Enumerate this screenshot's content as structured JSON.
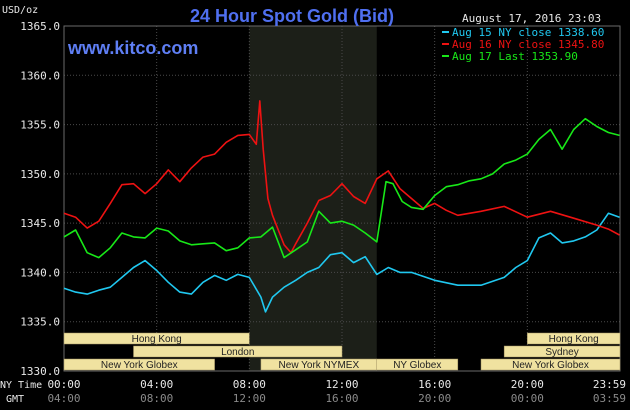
{
  "chart_data": {
    "type": "line",
    "title": "24 Hour Spot Gold (Bid)",
    "brand": "www.kitco.com",
    "ylabel": "USD/oz",
    "timestamp": "August 17, 2016 23:03",
    "ylim": [
      1330,
      1365
    ],
    "yticks": [
      "1365.0",
      "1360.0",
      "1355.0",
      "1350.0",
      "1345.0",
      "1340.0",
      "1335.0",
      "1330.0"
    ],
    "x_row1_label": "NY Time",
    "x_row2_label": "GMT",
    "x_ticks_ny": [
      "00:00",
      "04:00",
      "08:00",
      "12:00",
      "16:00",
      "20:00",
      "23:59"
    ],
    "x_ticks_gmt": [
      "04:00",
      "08:00",
      "12:00",
      "16:00",
      "20:00",
      "00:00",
      "03:59"
    ],
    "colors": {
      "background": "#000000",
      "grid": "#4a4a4a",
      "highlight": "#1c1f18",
      "session": "#f0e2a0",
      "title": "#4f6ff0"
    },
    "sessions": [
      {
        "label": "Hong Kong",
        "start": 0.0,
        "end": 8.0,
        "row": 0
      },
      {
        "label": "London",
        "start": 3.0,
        "end": 12.0,
        "row": 1
      },
      {
        "label": "New York Globex",
        "start": 0.0,
        "end": 6.5,
        "row": 2
      },
      {
        "label": "New York NYMEX",
        "start": 8.5,
        "end": 13.5,
        "row": 2
      },
      {
        "label": "NY Globex",
        "start": 13.5,
        "end": 17.0,
        "row": 2
      },
      {
        "label": "Hong Kong",
        "start": 20.0,
        "end": 24.0,
        "row": 0
      },
      {
        "label": "Sydney",
        "start": 19.0,
        "end": 24.0,
        "row": 1
      },
      {
        "label": "New York Globex",
        "start": 18.0,
        "end": 24.0,
        "row": 2
      }
    ],
    "highlight_hours": [
      8.0,
      13.5
    ],
    "series": [
      {
        "name": "Aug 15 NY close 1338.60",
        "color": "#20c8f0",
        "points": [
          [
            0,
            1338.4
          ],
          [
            0.5,
            1338
          ],
          [
            1,
            1337.8
          ],
          [
            1.5,
            1338.2
          ],
          [
            2,
            1338.5
          ],
          [
            2.5,
            1339.5
          ],
          [
            3,
            1340.5
          ],
          [
            3.5,
            1341.2
          ],
          [
            4,
            1340.2
          ],
          [
            4.5,
            1339
          ],
          [
            5,
            1338
          ],
          [
            5.5,
            1337.8
          ],
          [
            6,
            1339
          ],
          [
            6.5,
            1339.7
          ],
          [
            7,
            1339.2
          ],
          [
            7.5,
            1339.8
          ],
          [
            8,
            1339.5
          ],
          [
            8.5,
            1337.5
          ],
          [
            8.7,
            1336
          ],
          [
            9,
            1337.5
          ],
          [
            9.5,
            1338.5
          ],
          [
            10,
            1339.2
          ],
          [
            10.5,
            1340
          ],
          [
            11,
            1340.5
          ],
          [
            11.5,
            1341.8
          ],
          [
            12,
            1342
          ],
          [
            12.5,
            1341
          ],
          [
            13,
            1341.6
          ],
          [
            13.5,
            1339.8
          ],
          [
            14,
            1340.5
          ],
          [
            14.5,
            1340
          ],
          [
            15,
            1340
          ],
          [
            16,
            1339.2
          ],
          [
            17,
            1338.7
          ],
          [
            18,
            1338.7
          ],
          [
            19,
            1339.5
          ],
          [
            19.5,
            1340.5
          ],
          [
            20,
            1341.2
          ],
          [
            20.5,
            1343.5
          ],
          [
            21,
            1344
          ],
          [
            21.5,
            1343
          ],
          [
            22,
            1343.2
          ],
          [
            22.5,
            1343.6
          ],
          [
            23,
            1344.3
          ],
          [
            23.5,
            1346
          ],
          [
            23.98,
            1345.6
          ]
        ]
      },
      {
        "name": "Aug 16 NY close 1345.80",
        "color": "#ee1212",
        "points": [
          [
            0,
            1346
          ],
          [
            0.5,
            1345.6
          ],
          [
            1,
            1344.5
          ],
          [
            1.5,
            1345.2
          ],
          [
            2,
            1347
          ],
          [
            2.5,
            1348.9
          ],
          [
            3,
            1349
          ],
          [
            3.5,
            1348
          ],
          [
            4,
            1349
          ],
          [
            4.5,
            1350.4
          ],
          [
            5,
            1349.2
          ],
          [
            5.5,
            1350.6
          ],
          [
            6,
            1351.7
          ],
          [
            6.5,
            1352
          ],
          [
            7,
            1353.2
          ],
          [
            7.5,
            1353.9
          ],
          [
            8,
            1354
          ],
          [
            8.3,
            1353
          ],
          [
            8.45,
            1357.4
          ],
          [
            8.6,
            1352.5
          ],
          [
            8.8,
            1347.5
          ],
          [
            9,
            1345.8
          ],
          [
            9.5,
            1342.8
          ],
          [
            9.8,
            1342
          ],
          [
            10,
            1342.9
          ],
          [
            10.5,
            1345
          ],
          [
            11,
            1347.3
          ],
          [
            11.5,
            1347.8
          ],
          [
            12,
            1349
          ],
          [
            12.5,
            1347.7
          ],
          [
            13,
            1347
          ],
          [
            13.5,
            1349.5
          ],
          [
            14,
            1350.3
          ],
          [
            14.5,
            1348.5
          ],
          [
            15,
            1347.5
          ],
          [
            15.5,
            1346.5
          ],
          [
            16,
            1347
          ],
          [
            16.5,
            1346.3
          ],
          [
            17,
            1345.8
          ],
          [
            18,
            1346.2
          ],
          [
            19,
            1346.7
          ],
          [
            20,
            1345.6
          ],
          [
            21,
            1346.2
          ],
          [
            22,
            1345.5
          ],
          [
            23,
            1344.8
          ],
          [
            23.5,
            1344.4
          ],
          [
            23.98,
            1343.8
          ]
        ]
      },
      {
        "name": "Aug 17 Last 1353.90",
        "color": "#18e818",
        "points": [
          [
            0,
            1343.6
          ],
          [
            0.5,
            1344.3
          ],
          [
            1,
            1342
          ],
          [
            1.5,
            1341.5
          ],
          [
            2,
            1342.5
          ],
          [
            2.5,
            1344
          ],
          [
            3,
            1343.6
          ],
          [
            3.5,
            1343.5
          ],
          [
            4,
            1344.5
          ],
          [
            4.5,
            1344.2
          ],
          [
            5,
            1343.2
          ],
          [
            5.5,
            1342.8
          ],
          [
            6,
            1342.9
          ],
          [
            6.5,
            1343
          ],
          [
            7,
            1342.2
          ],
          [
            7.5,
            1342.5
          ],
          [
            8,
            1343.5
          ],
          [
            8.5,
            1343.6
          ],
          [
            9,
            1344.6
          ],
          [
            9.5,
            1341.5
          ],
          [
            10,
            1342.3
          ],
          [
            10.5,
            1343.1
          ],
          [
            11,
            1346.2
          ],
          [
            11.5,
            1345
          ],
          [
            12,
            1345.2
          ],
          [
            12.5,
            1344.8
          ],
          [
            13,
            1344
          ],
          [
            13.5,
            1343.1
          ],
          [
            13.9,
            1349.2
          ],
          [
            14.2,
            1349
          ],
          [
            14.6,
            1347.2
          ],
          [
            15,
            1346.6
          ],
          [
            15.5,
            1346.4
          ],
          [
            16,
            1347.8
          ],
          [
            16.5,
            1348.7
          ],
          [
            17,
            1348.9
          ],
          [
            17.5,
            1349.3
          ],
          [
            18,
            1349.5
          ],
          [
            18.5,
            1350
          ],
          [
            19,
            1351
          ],
          [
            19.5,
            1351.4
          ],
          [
            20,
            1352
          ],
          [
            20.5,
            1353.5
          ],
          [
            21,
            1354.5
          ],
          [
            21.5,
            1352.5
          ],
          [
            22,
            1354.5
          ],
          [
            22.5,
            1355.6
          ],
          [
            23,
            1354.8
          ],
          [
            23.5,
            1354.2
          ],
          [
            23.98,
            1353.9
          ]
        ]
      }
    ]
  }
}
